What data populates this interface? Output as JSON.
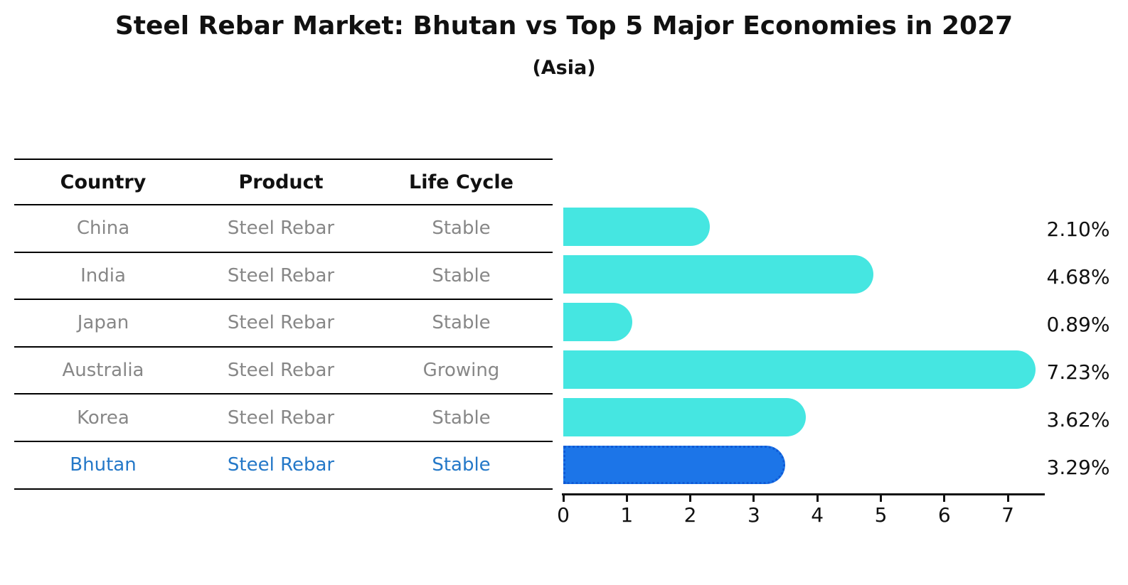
{
  "title": "Steel Rebar Market: Bhutan vs Top 5 Major Economies in 2027",
  "subtitle": "(Asia)",
  "table": {
    "headers": [
      "Country",
      "Product",
      "Life Cycle"
    ],
    "rows": [
      {
        "country": "China",
        "product": "Steel Rebar",
        "life_cycle": "Stable",
        "highlight": false
      },
      {
        "country": "India",
        "product": "Steel Rebar",
        "life_cycle": "Stable",
        "highlight": false
      },
      {
        "country": "Japan",
        "product": "Steel Rebar",
        "life_cycle": "Stable",
        "highlight": false
      },
      {
        "country": "Australia",
        "product": "Steel Rebar",
        "life_cycle": "Growing",
        "highlight": false
      },
      {
        "country": "Korea",
        "product": "Steel Rebar",
        "life_cycle": "Stable",
        "highlight": false
      },
      {
        "country": "Bhutan",
        "product": "Steel Rebar",
        "life_cycle": "Stable",
        "highlight": true
      }
    ]
  },
  "chart_data": {
    "type": "bar",
    "orientation": "horizontal",
    "title": "Steel Rebar Market: Bhutan vs Top 5 Major Economies in 2027",
    "subtitle": "(Asia)",
    "categories": [
      "China",
      "India",
      "Japan",
      "Australia",
      "Korea",
      "Bhutan"
    ],
    "values": [
      2.1,
      4.68,
      0.89,
      7.23,
      3.62,
      3.29
    ],
    "value_labels": [
      "2.10%",
      "4.68%",
      "0.89%",
      "7.23%",
      "3.62%",
      "3.29%"
    ],
    "xlabel": "",
    "ylabel": "",
    "xlim": [
      0,
      7.57
    ],
    "xticks": [
      "0",
      "1",
      "2",
      "3",
      "4",
      "5",
      "6",
      "7"
    ],
    "grid": false,
    "legend": "none",
    "highlight_index": 5,
    "bar_color": "#45e6e1",
    "highlight_bar_color": "#1c75e8",
    "highlight_border_color": "#0f5ad6",
    "highlight_text_color": "#2478c8",
    "text_color": "#111111",
    "muted_text_color": "#878787"
  }
}
